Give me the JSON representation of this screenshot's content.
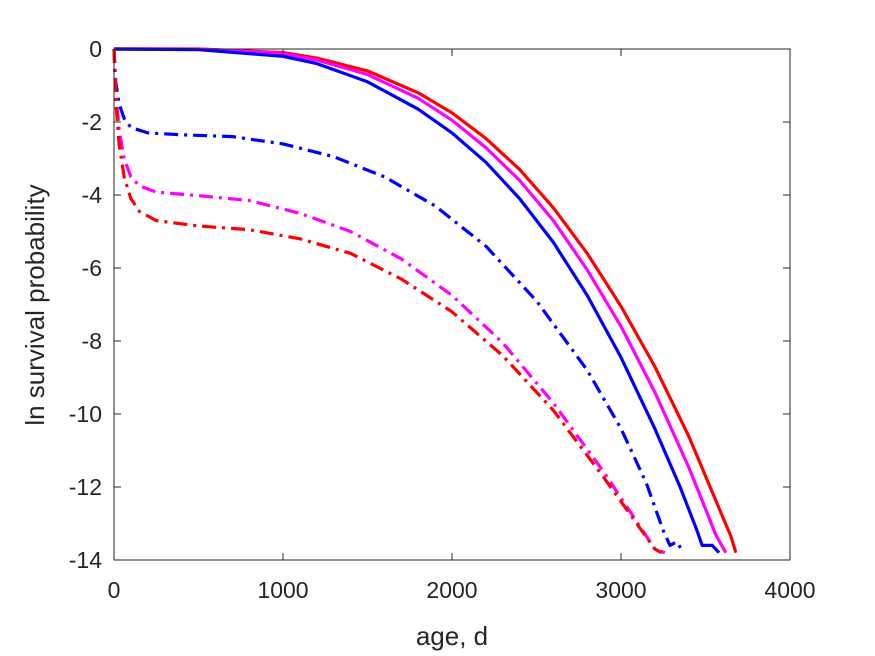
{
  "chart_data": {
    "type": "line",
    "title": "",
    "xlabel": "age, d",
    "ylabel": "ln survival probability",
    "xlim": [
      0,
      4000
    ],
    "ylim": [
      -14,
      0
    ],
    "x_ticks": [
      0,
      1000,
      2000,
      3000,
      4000
    ],
    "y_ticks": [
      0,
      -2,
      -4,
      -6,
      -8,
      -10,
      -12,
      -14
    ],
    "x_tick_labels": [
      "0",
      "1000",
      "2000",
      "3000",
      "4000"
    ],
    "y_tick_labels": [
      "0",
      "-2",
      "-4",
      "-6",
      "-8",
      "-10",
      "-12",
      "-14"
    ],
    "grid": false,
    "series": [
      {
        "color": "#ff0000",
        "style": "solid",
        "points": [
          [
            0,
            0
          ],
          [
            500,
            0
          ],
          [
            1000,
            -0.1
          ],
          [
            1200,
            -0.25
          ],
          [
            1500,
            -0.6
          ],
          [
            1800,
            -1.2
          ],
          [
            2000,
            -1.75
          ],
          [
            2200,
            -2.45
          ],
          [
            2400,
            -3.3
          ],
          [
            2600,
            -4.35
          ],
          [
            2800,
            -5.6
          ],
          [
            3000,
            -7.05
          ],
          [
            3200,
            -8.7
          ],
          [
            3400,
            -10.6
          ],
          [
            3600,
            -12.8
          ],
          [
            3650,
            -13.35
          ],
          [
            3680,
            -13.8
          ]
        ]
      },
      {
        "color": "#ff00ff",
        "style": "solid",
        "points": [
          [
            0,
            0
          ],
          [
            500,
            0
          ],
          [
            1000,
            -0.12
          ],
          [
            1200,
            -0.3
          ],
          [
            1500,
            -0.7
          ],
          [
            1800,
            -1.35
          ],
          [
            2000,
            -1.95
          ],
          [
            2200,
            -2.7
          ],
          [
            2400,
            -3.6
          ],
          [
            2600,
            -4.7
          ],
          [
            2800,
            -6.05
          ],
          [
            3000,
            -7.6
          ],
          [
            3200,
            -9.4
          ],
          [
            3400,
            -11.45
          ],
          [
            3500,
            -12.6
          ],
          [
            3560,
            -13.3
          ],
          [
            3620,
            -13.8
          ]
        ]
      },
      {
        "color": "#0000ff",
        "style": "solid",
        "points": [
          [
            0,
            0
          ],
          [
            500,
            -0.02
          ],
          [
            1000,
            -0.2
          ],
          [
            1200,
            -0.4
          ],
          [
            1500,
            -0.9
          ],
          [
            1800,
            -1.65
          ],
          [
            2000,
            -2.3
          ],
          [
            2200,
            -3.1
          ],
          [
            2400,
            -4.1
          ],
          [
            2600,
            -5.3
          ],
          [
            2800,
            -6.75
          ],
          [
            3000,
            -8.45
          ],
          [
            3200,
            -10.4
          ],
          [
            3350,
            -12.0
          ],
          [
            3450,
            -13.2
          ],
          [
            3480,
            -13.6
          ],
          [
            3540,
            -13.6
          ],
          [
            3580,
            -13.8
          ]
        ]
      },
      {
        "color": "#0000ff",
        "style": "dashdot",
        "points": [
          [
            0,
            0
          ],
          [
            10,
            -0.9
          ],
          [
            30,
            -1.5
          ],
          [
            60,
            -1.9
          ],
          [
            100,
            -2.15
          ],
          [
            200,
            -2.3
          ],
          [
            400,
            -2.35
          ],
          [
            700,
            -2.4
          ],
          [
            1000,
            -2.6
          ],
          [
            1300,
            -2.95
          ],
          [
            1600,
            -3.5
          ],
          [
            1900,
            -4.3
          ],
          [
            2200,
            -5.4
          ],
          [
            2500,
            -6.9
          ],
          [
            2800,
            -8.8
          ],
          [
            3000,
            -10.4
          ],
          [
            3150,
            -11.9
          ],
          [
            3250,
            -13.2
          ],
          [
            3290,
            -13.6
          ],
          [
            3330,
            -13.5
          ],
          [
            3370,
            -13.8
          ]
        ]
      },
      {
        "color": "#ff00ff",
        "style": "dashdot",
        "points": [
          [
            0,
            0
          ],
          [
            10,
            -1.2
          ],
          [
            30,
            -2.2
          ],
          [
            60,
            -3.0
          ],
          [
            100,
            -3.5
          ],
          [
            150,
            -3.75
          ],
          [
            250,
            -3.92
          ],
          [
            500,
            -4.02
          ],
          [
            800,
            -4.15
          ],
          [
            1100,
            -4.5
          ],
          [
            1400,
            -5.0
          ],
          [
            1700,
            -5.75
          ],
          [
            2000,
            -6.75
          ],
          [
            2300,
            -8.05
          ],
          [
            2600,
            -9.7
          ],
          [
            2900,
            -11.6
          ],
          [
            3100,
            -13.0
          ],
          [
            3200,
            -13.7
          ],
          [
            3260,
            -13.8
          ]
        ]
      },
      {
        "color": "#ff0000",
        "style": "dashdot",
        "points": [
          [
            0,
            0
          ],
          [
            10,
            -1.4
          ],
          [
            30,
            -2.6
          ],
          [
            60,
            -3.5
          ],
          [
            100,
            -4.1
          ],
          [
            150,
            -4.45
          ],
          [
            250,
            -4.7
          ],
          [
            500,
            -4.85
          ],
          [
            800,
            -4.95
          ],
          [
            1100,
            -5.2
          ],
          [
            1400,
            -5.6
          ],
          [
            1700,
            -6.3
          ],
          [
            2000,
            -7.2
          ],
          [
            2300,
            -8.4
          ],
          [
            2600,
            -9.9
          ],
          [
            2900,
            -11.75
          ],
          [
            3100,
            -13.05
          ],
          [
            3200,
            -13.7
          ],
          [
            3240,
            -13.8
          ]
        ]
      }
    ]
  }
}
